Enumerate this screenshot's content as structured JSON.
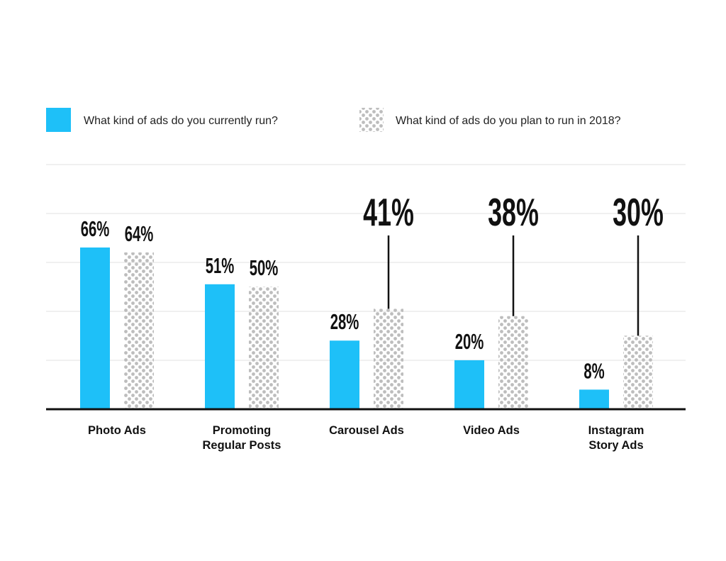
{
  "chart_data": {
    "type": "bar",
    "categories": [
      "Photo Ads",
      "Promoting Regular Posts",
      "Carousel Ads",
      "Video Ads",
      "Instagram Story Ads"
    ],
    "category_lines": [
      [
        "Photo Ads"
      ],
      [
        "Promoting",
        "Regular Posts"
      ],
      [
        "Carousel Ads"
      ],
      [
        "Video Ads"
      ],
      [
        "Instagram",
        "Story Ads"
      ]
    ],
    "series": [
      {
        "name": "What kind of ads do you currently run?",
        "values": [
          66,
          51,
          28,
          20,
          8
        ],
        "labels": [
          "66%",
          "51%",
          "28%",
          "20%",
          "8%"
        ],
        "color": "#1ec0f8",
        "pattern": "solid"
      },
      {
        "name": "What kind of ads do you plan to run in 2018?",
        "values": [
          64,
          50,
          41,
          38,
          30
        ],
        "labels": [
          "64%",
          "50%",
          "41%",
          "38%",
          "30%"
        ],
        "color": "#bdbdbd",
        "pattern": "dotted"
      }
    ],
    "callouts": [
      false,
      false,
      true,
      true,
      true
    ],
    "title": "",
    "xlabel": "",
    "ylabel": "",
    "ylim": [
      0,
      100
    ],
    "grid": true,
    "legend_position": "top"
  }
}
